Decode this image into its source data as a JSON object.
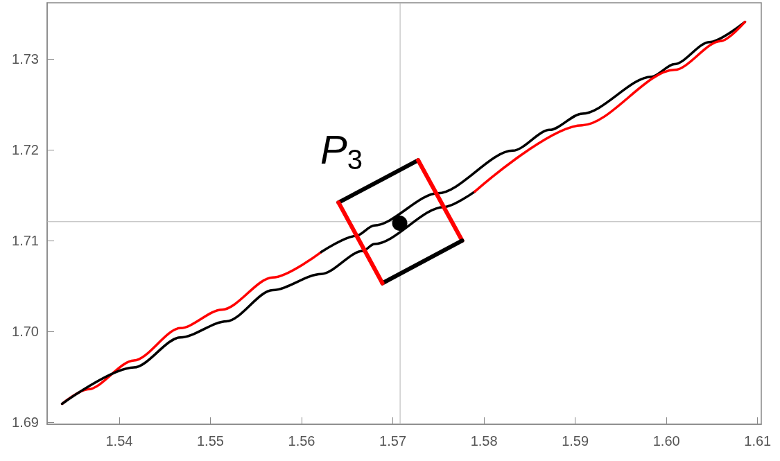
{
  "chart_data": {
    "type": "line",
    "marker": "none",
    "line_style": "solid",
    "xlim": [
      1.5321,
      1.6104
    ],
    "ylim": [
      1.6898,
      1.7362
    ],
    "xticks": [
      1.54,
      1.55,
      1.56,
      1.57,
      1.58,
      1.59,
      {
        "value": 1.6,
        "label": "1.60"
      },
      1.61
    ],
    "yticks": [
      1.69,
      {
        "value": 1.7,
        "label": "1.70"
      },
      1.71,
      1.72,
      1.73
    ],
    "ref_lines": [
      {
        "axis": "x",
        "value": 1.5708,
        "color": "#b3b3b3"
      },
      {
        "axis": "y",
        "value": 1.7121,
        "color": "#b3b3b3"
      }
    ],
    "annotations": [
      "P$_{3}$"
    ],
    "series": [
      {
        "color": "#ff0000",
        "x": [
          1.53374,
          1.53658,
          1.54162,
          1.54671,
          1.55126,
          1.55683,
          1.56215
        ],
        "values": [
          1.69205,
          1.69365,
          1.69682,
          1.70038,
          1.70241,
          1.70596,
          1.70876
        ]
      },
      {
        "color": "#000000",
        "x": [
          1.56215,
          1.56595,
          1.56797,
          1.57494,
          1.58316,
          1.58721,
          1.59076,
          1.59835,
          1.60088,
          1.60468,
          1.60861
        ],
        "values": [
          1.70876,
          1.71053,
          1.71168,
          1.71523,
          1.71992,
          1.72221,
          1.72399,
          1.72805,
          1.72944,
          1.73186,
          1.73409
        ]
      },
      {
        "color": "#000000",
        "x": [
          1.53374,
          1.54162,
          1.54671,
          1.55177,
          1.55683,
          1.56215,
          1.56671,
          1.56797,
          1.57557,
          1.57899
        ],
        "values": [
          1.69205,
          1.69606,
          1.69936,
          1.70114,
          1.70457,
          1.70634,
          1.70888,
          1.70964,
          1.71371,
          1.71541
        ]
      },
      {
        "color": "#ff0000",
        "x": [
          1.57899,
          1.59076,
          1.60088,
          1.60595,
          1.60861
        ],
        "values": [
          1.71541,
          1.72272,
          1.72881,
          1.73199,
          1.73409
        ]
      },
      {
        "color": "#000000",
        "x": [
          1.56405,
          1.57278
        ],
        "values": [
          1.71421,
          1.71886
        ]
      },
      {
        "color": "#ff0000",
        "x": [
          1.57278,
          1.5776
        ],
        "values": [
          1.71886,
          1.71002
        ]
      },
      {
        "color": "#000000",
        "x": [
          1.5776,
          1.56886
        ],
        "values": [
          1.71002,
          1.70533
        ]
      },
      {
        "color": "#ff0000",
        "x": [
          1.56886,
          1.56405
        ],
        "values": [
          1.70533,
          1.71421
        ]
      },
      {
        "type": "scatter",
        "marker": "circle",
        "color": "#000000",
        "x": [
          1.57076
        ],
        "values": [
          1.71193
        ]
      }
    ]
  }
}
